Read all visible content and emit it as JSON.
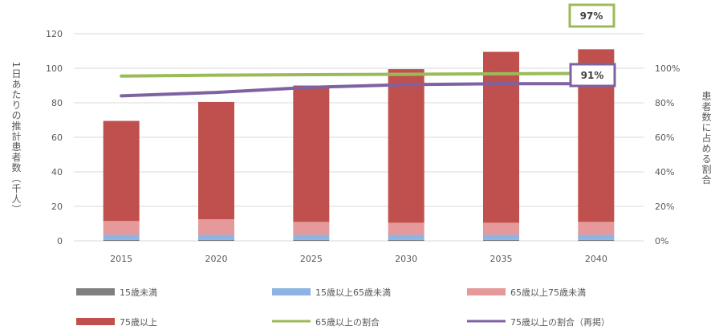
{
  "colors": {
    "under15": "#7f7f7f",
    "age15to64": "#8eb4e3",
    "age65to74": "#e6999b",
    "age75plus": "#c0504d",
    "share65plus": "#9bbb59",
    "share75plus": "#7f62a1",
    "grid": "#d9d9d9"
  },
  "chart_data": {
    "type": "bar",
    "stacked": true,
    "categories": [
      "2015",
      "2020",
      "2025",
      "2030",
      "2035",
      "2040"
    ],
    "series": [
      {
        "name": "15歳未満",
        "values": [
          0.5,
          0.5,
          0.5,
          0.5,
          0.5,
          0.5
        ]
      },
      {
        "name": "15歳以上65歳未満",
        "values": [
          3,
          3,
          3,
          3,
          3,
          3
        ]
      },
      {
        "name": "65歳以上75歳未満",
        "values": [
          8,
          9,
          7.5,
          7,
          7,
          7.5
        ]
      },
      {
        "name": "75歳以上",
        "values": [
          58,
          68,
          79,
          89,
          99,
          100
        ]
      }
    ],
    "line_series": [
      {
        "name": "65歳以上の割合",
        "values": [
          95.5,
          96,
          96.3,
          96.5,
          96.8,
          97
        ]
      },
      {
        "name": "75歳以上の割合（再掲）",
        "values": [
          84,
          86,
          89,
          90.5,
          91,
          91
        ]
      }
    ],
    "ylabel": "1日あたりの推計患者数（千人）",
    "ylabel_right": "患者数に占める割合",
    "ylim": [
      0,
      120
    ],
    "yticks": [
      "0",
      "20",
      "40",
      "60",
      "80",
      "100",
      "120"
    ],
    "ylim_right": [
      0,
      120
    ],
    "yticks_right": [
      "0%",
      "20%",
      "40%",
      "60%",
      "80%",
      "100%"
    ],
    "grid": true,
    "legend_position": "bottom",
    "annotations": [
      "97%",
      "91%"
    ]
  }
}
